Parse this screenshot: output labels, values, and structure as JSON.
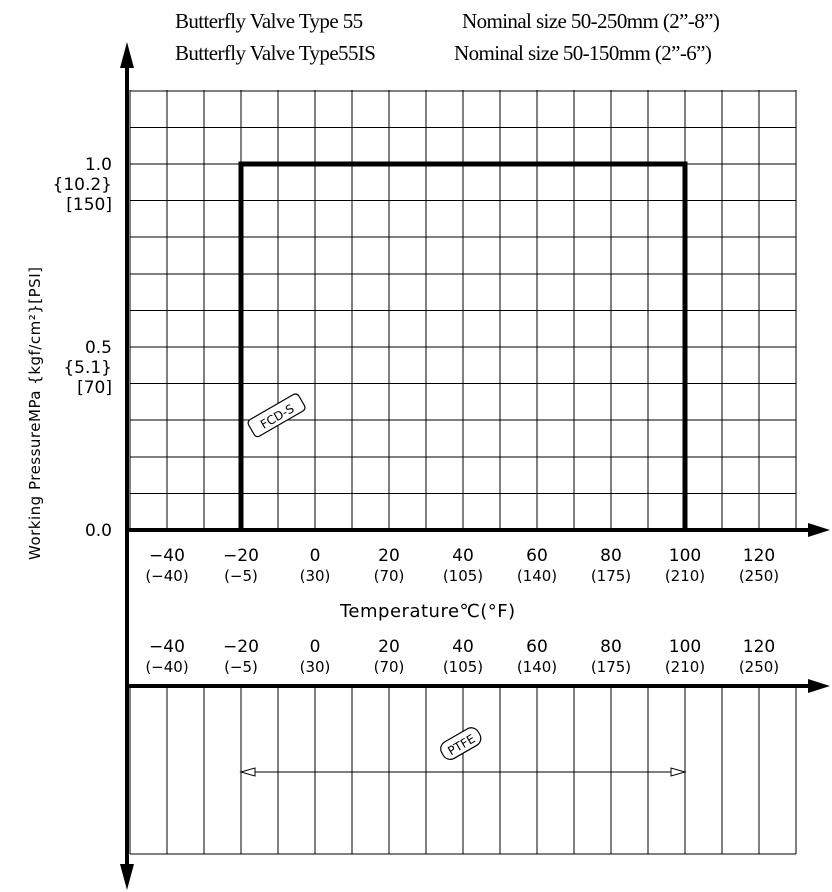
{
  "titles": [
    {
      "text": "Butterfly Valve Type 55",
      "size": "Nominal size 50-250mm (2”-8”)"
    },
    {
      "text": "Butterfly Valve Type55IS",
      "size": "Nominal size 50-150mm (2”-6”)"
    }
  ],
  "chart_data": [
    {
      "type": "line",
      "name": "pressure-temperature rating",
      "xlabel": "Temperature℃(°F)",
      "ylabel": "Working PressureMPa {kgf/cm²}[PSI]",
      "xlim": [
        -50,
        130
      ],
      "ylim": [
        0,
        1.2
      ],
      "grid": true,
      "x_ticks": [
        {
          "c": -40,
          "main": "−40",
          "sub": "(−40)"
        },
        {
          "c": -20,
          "main": "−20",
          "sub": "(−5)"
        },
        {
          "c": 0,
          "main": "0",
          "sub": "(30)"
        },
        {
          "c": 20,
          "main": "20",
          "sub": "(70)"
        },
        {
          "c": 40,
          "main": "40",
          "sub": "(105)"
        },
        {
          "c": 60,
          "main": "60",
          "sub": "(140)"
        },
        {
          "c": 80,
          "main": "80",
          "sub": "(175)"
        },
        {
          "c": 100,
          "main": "100",
          "sub": "(210)"
        },
        {
          "c": 120,
          "main": "120",
          "sub": "(250)"
        }
      ],
      "y_ticks": [
        {
          "v": 1.0,
          "lines": [
            "1.0",
            "{10.2}",
            "[150]"
          ]
        },
        {
          "v": 0.5,
          "lines": [
            "0.5",
            "{5.1}",
            "[70]"
          ]
        },
        {
          "v": 0.0,
          "lines": [
            "0.0"
          ]
        }
      ],
      "series": [
        {
          "name": "FCD-S",
          "x": [
            -20,
            -20,
            100,
            100
          ],
          "y": [
            0,
            1.0,
            1.0,
            0
          ]
        }
      ]
    },
    {
      "type": "range",
      "name": "seat material temperature range",
      "xlim": [
        -50,
        130
      ],
      "x_ticks": [
        {
          "c": -40,
          "main": "−40",
          "sub": "(−40)"
        },
        {
          "c": -20,
          "main": "−20",
          "sub": "(−5)"
        },
        {
          "c": 0,
          "main": "0",
          "sub": "(30)"
        },
        {
          "c": 20,
          "main": "20",
          "sub": "(70)"
        },
        {
          "c": 40,
          "main": "40",
          "sub": "(105)"
        },
        {
          "c": 60,
          "main": "60",
          "sub": "(140)"
        },
        {
          "c": 80,
          "main": "80",
          "sub": "(175)"
        },
        {
          "c": 100,
          "main": "100",
          "sub": "(210)"
        },
        {
          "c": 120,
          "main": "120",
          "sub": "(250)"
        }
      ],
      "series": [
        {
          "name": "PTFE",
          "x": [
            -20,
            100
          ]
        }
      ]
    }
  ]
}
